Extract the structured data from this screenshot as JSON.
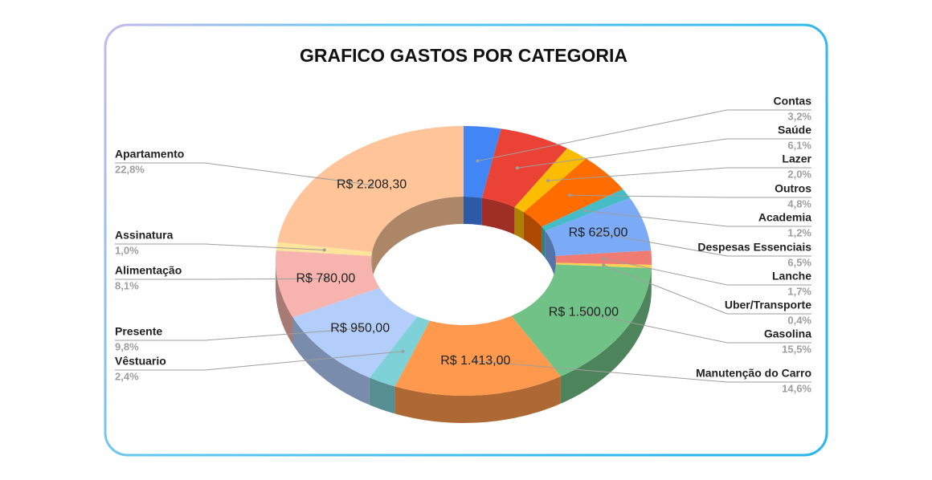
{
  "chart_data": {
    "type": "pie",
    "title": "GRAFICO GASTOS POR CATEGORIA",
    "donut": true,
    "three_d": true,
    "categories": [
      "Contas",
      "Saúde",
      "Lazer",
      "Outros",
      "Academia",
      "Despesas Essenciais",
      "Lanche",
      "Uber/Transporte",
      "Gasolina",
      "Manutenção do Carro",
      "Vêstuario",
      "Presente",
      "Alimentação",
      "Assinatura",
      "Apartamento"
    ],
    "values": [
      3.2,
      6.1,
      2.0,
      4.8,
      1.2,
      6.5,
      1.7,
      0.4,
      15.5,
      14.6,
      2.4,
      9.8,
      8.1,
      1.0,
      22.8
    ],
    "value_labels": [
      "3,2%",
      "6,1%",
      "2,0%",
      "4,8%",
      "1,2%",
      "6,5%",
      "1,7%",
      "0,4%",
      "15,5%",
      "14,6%",
      "2,4%",
      "9,8%",
      "8,1%",
      "1,0%",
      "22,8%"
    ],
    "amounts": [
      null,
      null,
      null,
      null,
      null,
      625.0,
      null,
      null,
      1500.0,
      1413.0,
      null,
      950.0,
      780.0,
      null,
      2208.3
    ],
    "amount_labels": [
      null,
      null,
      null,
      null,
      null,
      "R$ 625,00",
      null,
      null,
      "R$ 1.500,00",
      "R$ 1.413,00",
      null,
      "R$ 950,00",
      "R$ 780,00",
      null,
      "R$ 2.208,30"
    ],
    "colors": [
      "#4285f4",
      "#ea4335",
      "#fbbc04",
      "#ff6d01",
      "#46bdc6",
      "#7baaf7",
      "#f07b72",
      "#fcd04f",
      "#71c287",
      "#ff994d",
      "#7ed1d7",
      "#b3cefb",
      "#f7b4ae",
      "#fde49b",
      "#ffc599"
    ]
  }
}
